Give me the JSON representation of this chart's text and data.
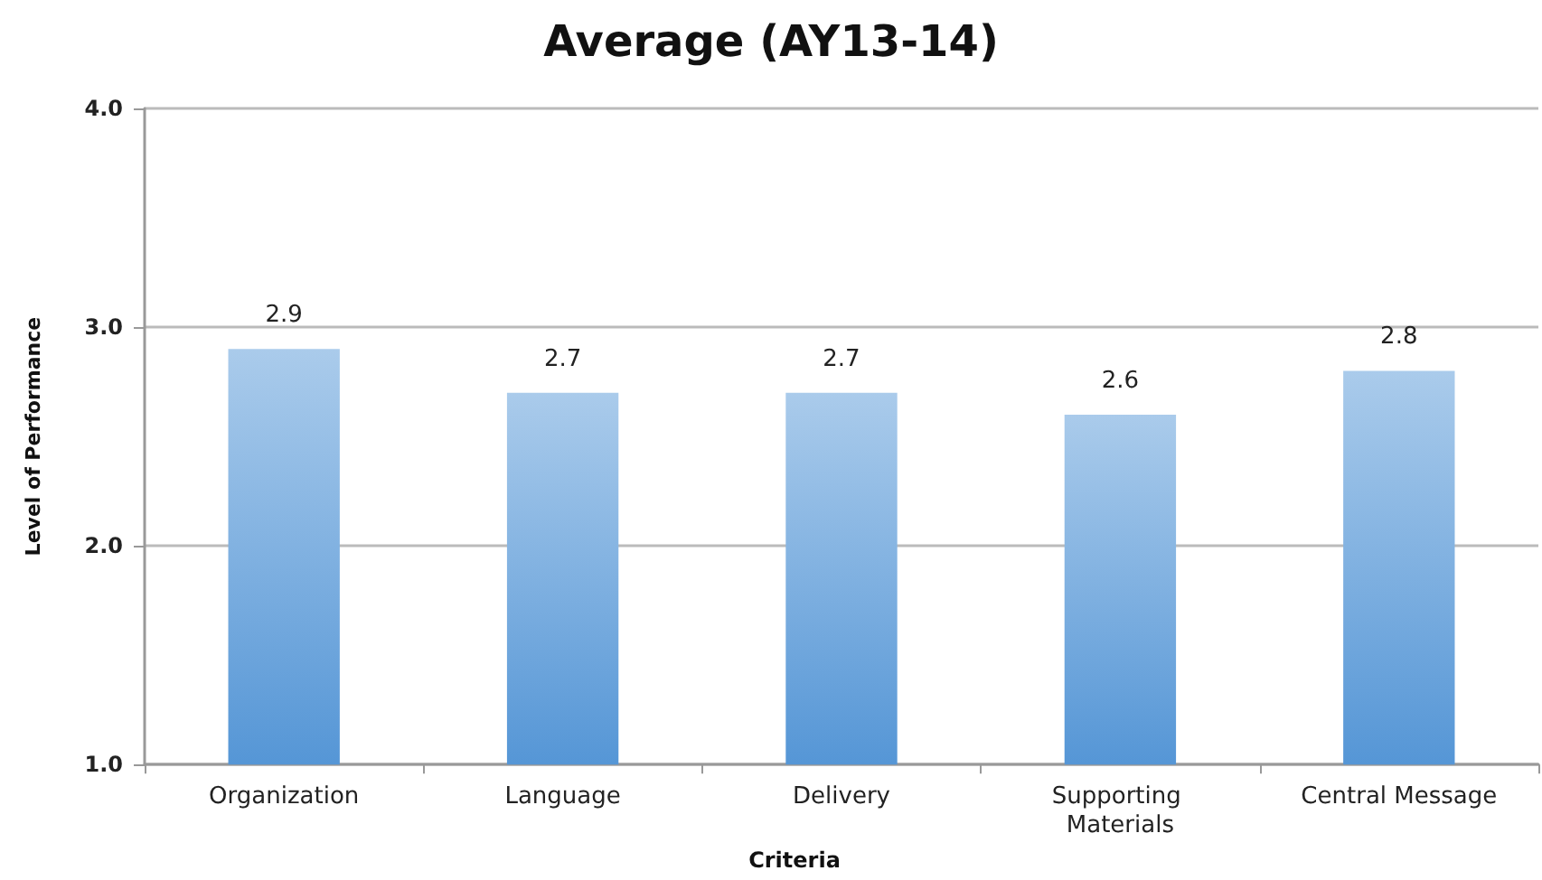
{
  "chart_data": {
    "type": "bar",
    "title": "Average (AY13-14)",
    "xlabel": "Criteria",
    "ylabel": "Level of Performance",
    "categories": [
      "Organization",
      "Language",
      "Delivery",
      "Supporting Materials",
      "Central Message"
    ],
    "values": [
      2.9,
      2.7,
      2.7,
      2.6,
      2.8
    ],
    "color": "#5596d6",
    "ylim": [
      1,
      4
    ],
    "yticks": [
      {
        "value": 1,
        "label": "1.0"
      },
      {
        "value": 2,
        "label": "2.0"
      },
      {
        "value": 3,
        "label": "3.0"
      },
      {
        "value": 4,
        "label": "4.0"
      }
    ],
    "grid": "y",
    "data_labels": true
  }
}
